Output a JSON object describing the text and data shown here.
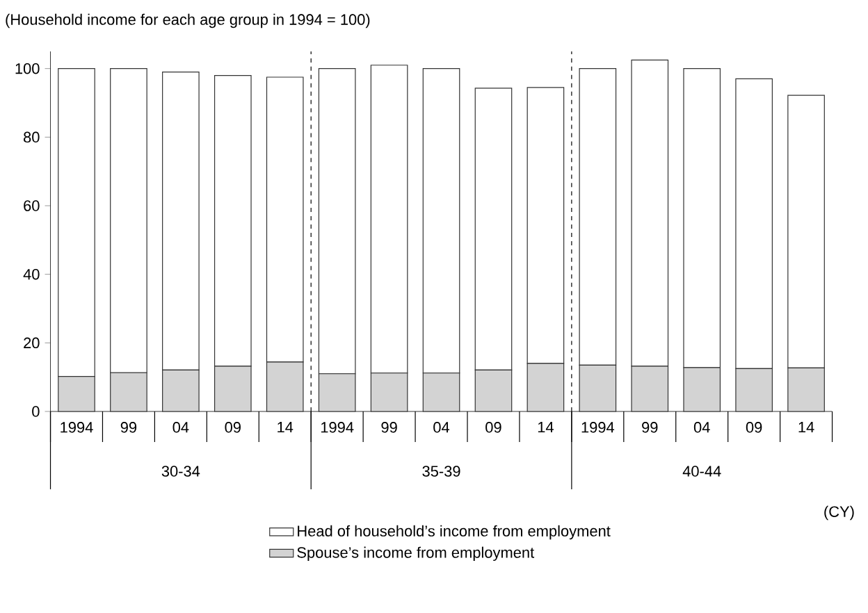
{
  "chart_data": {
    "type": "bar",
    "stacked": true,
    "ylabel": "(Household income for each age group in 1994 = 100)",
    "categories": [
      "1994",
      "99",
      "04",
      "09",
      "14",
      "1994",
      "99",
      "04",
      "09",
      "14",
      "1994",
      "99",
      "04",
      "09",
      "14"
    ],
    "annotations": [
      "30-34",
      "35-39",
      "40-44",
      "(CY)"
    ],
    "series": [
      {
        "name": "Spouse’s income from employment",
        "color": "#d3d3d3",
        "values": [
          10.2,
          11.3,
          12.1,
          13.2,
          14.4,
          11.0,
          11.2,
          11.2,
          12.1,
          14.0,
          13.5,
          13.2,
          12.8,
          12.5,
          12.7
        ]
      },
      {
        "name": "Head of household’s income from employment",
        "color": "#ffffff",
        "values": [
          89.8,
          88.7,
          86.9,
          84.8,
          83.1,
          89.0,
          89.8,
          88.8,
          82.2,
          80.5,
          86.5,
          89.3,
          87.2,
          84.5,
          79.5
        ]
      }
    ],
    "ylim": [
      0,
      105
    ],
    "yticks": [
      0,
      20,
      40,
      60,
      80,
      100
    ],
    "legend": "bottom",
    "grid": false
  }
}
